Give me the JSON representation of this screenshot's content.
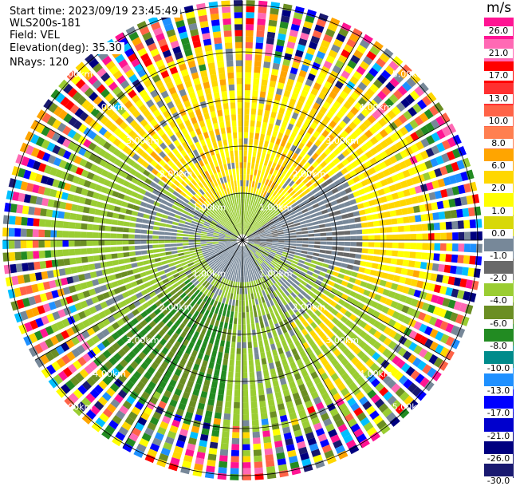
{
  "header": {
    "start_time": "Start time: 2023/09/19 23:45:49",
    "instrument": "WLS200s-181",
    "field": "Field: VEL",
    "elevation": "Elevation(deg): 35.30",
    "nrays": "NRays: 120"
  },
  "colorbar": {
    "unit": "m/s",
    "labels": [
      "26.0",
      "21.0",
      "17.0",
      "13.0",
      "10.0",
      "8.0",
      "6.0",
      "2.0",
      "1.0",
      "0.0",
      "-1.0",
      "-2.0",
      "-4.0",
      "-6.0",
      "-8.0",
      "-10.0",
      "-13.0",
      "-17.0",
      "-21.0",
      "-26.0",
      "-30.0"
    ],
    "colors": [
      "#ff1493",
      "#ff69b4",
      "#ff0000",
      "#ff3030",
      "#ff6347",
      "#ff7f50",
      "#ffa500",
      "#ffd700",
      "#ffff00",
      "#d8d808",
      "#778899",
      "#696969",
      "#9acd32",
      "#6b8e23",
      "#228b22",
      "#008b8b",
      "#1e90ff",
      "#0000ff",
      "#0000cd",
      "#000080",
      "#191970"
    ]
  },
  "chart_data": {
    "type": "polar-ppi",
    "field": "VEL",
    "unit": "m/s",
    "nrays": 120,
    "range_rings_km": [
      1.0,
      2.0,
      3.0,
      4.0,
      5.0
    ],
    "range_ring_labels": [
      "1.00km",
      "2.00km",
      "3.00km",
      "4.00km",
      "5.00km"
    ],
    "spoke_angles_deg": [
      0,
      30,
      60,
      90,
      120,
      150,
      180,
      210,
      240,
      270,
      300,
      330
    ],
    "velocity_range": [
      -30.0,
      26.0
    ],
    "dominant_sectors": [
      {
        "azimuth_from": -60,
        "azimuth_to": 60,
        "range_from_km": 1.0,
        "range_to_km": 3.0,
        "dominant_value": 2.0
      },
      {
        "azimuth_from": 150,
        "azimuth_to": 260,
        "range_from_km": 0.5,
        "range_to_km": 3.5,
        "dominant_value": -2.0
      },
      {
        "azimuth_from": 60,
        "azimuth_to": 120,
        "range_from_km": 0.0,
        "range_to_km": 3.0,
        "dominant_value": 0.0
      },
      {
        "azimuth_from": 240,
        "azimuth_to": 300,
        "range_from_km": 0.0,
        "range_to_km": 2.5,
        "dominant_value": 0.0
      }
    ]
  }
}
